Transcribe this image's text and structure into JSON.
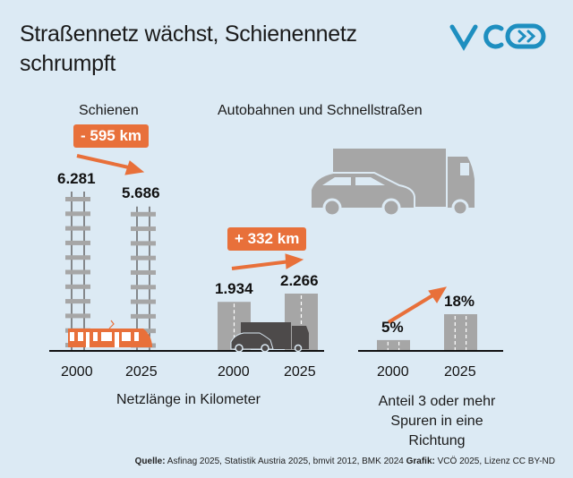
{
  "title": [
    "Straßennetz wächst, Schienennetz",
    "schrumpft"
  ],
  "logo": {
    "text": "VCÖ",
    "color": "#1e8fc0"
  },
  "colors": {
    "accent": "#e8703a",
    "bar": "#a6a6a6",
    "vehicle": "#4d4a4a",
    "background": "#dceaf4"
  },
  "chart_data": [
    {
      "type": "bar",
      "title": "Schienen",
      "categories": [
        "2000",
        "2025"
      ],
      "values": [
        6281,
        5686
      ],
      "labels": [
        "6.281",
        "5.686"
      ],
      "change": "- 595 km",
      "unit": "km"
    },
    {
      "type": "bar",
      "title": "Autobahnen und Schnellstraßen",
      "categories": [
        "2000",
        "2025"
      ],
      "values": [
        1934,
        2266
      ],
      "labels": [
        "1.934",
        "2.266"
      ],
      "change": "+ 332 km",
      "unit": "km"
    },
    {
      "type": "bar",
      "categories": [
        "2000",
        "2025"
      ],
      "values": [
        5,
        18
      ],
      "labels": [
        "5%",
        "18%"
      ],
      "unit": "%"
    }
  ],
  "axis_labels": {
    "length": "Netzlänge in Kilometer",
    "lanes": [
      "Anteil 3 oder mehr",
      "Spuren in eine Richtung"
    ]
  },
  "footer": {
    "source_label": "Quelle:",
    "source": " Asfinag 2025, Statistik Austria 2025, bmvit 2012, BMK 2024 ",
    "graphic_label": "Grafik:",
    "graphic": " VCÖ 2025, Lizenz CC BY-ND"
  }
}
